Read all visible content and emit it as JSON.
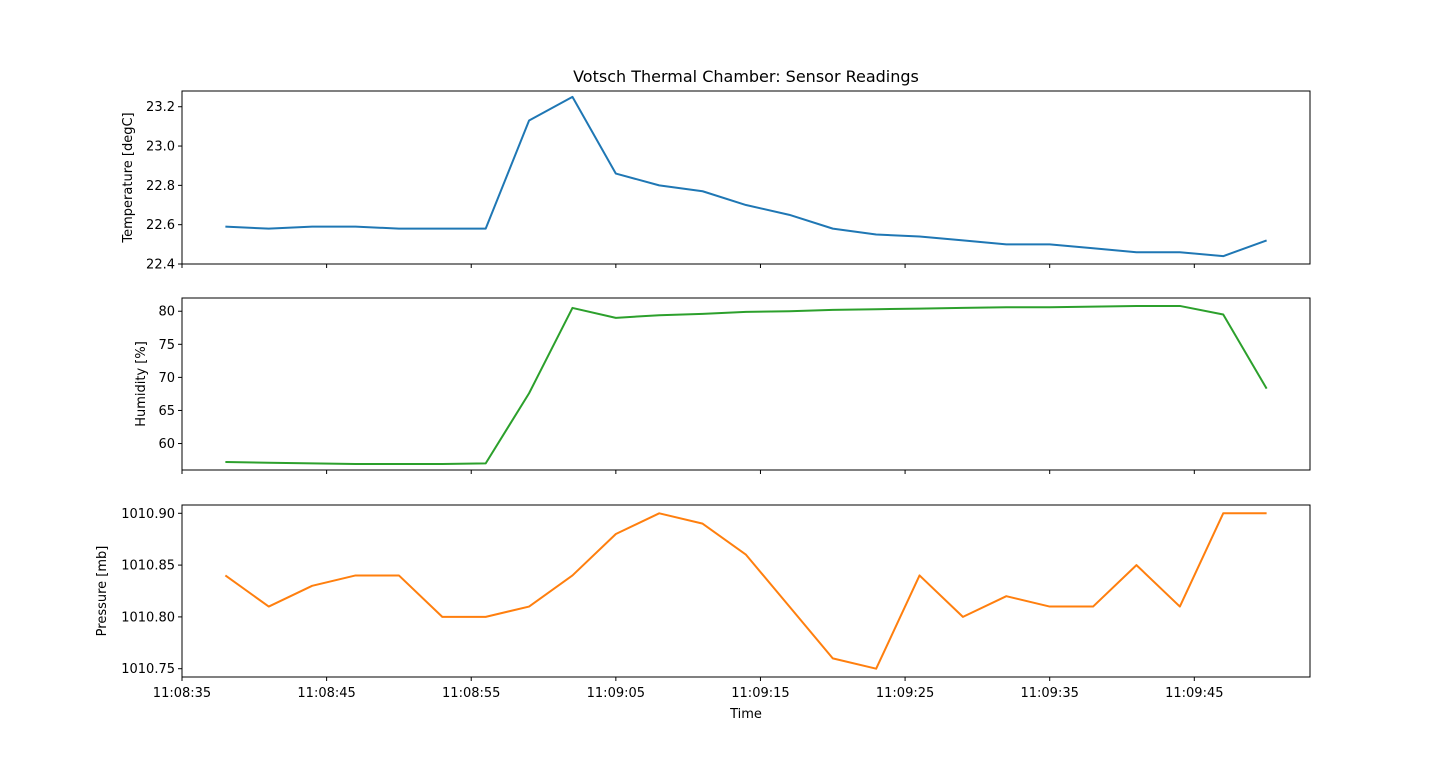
{
  "chart_data": {
    "type": "line",
    "title": "Votsch Thermal Chamber: Sensor Readings",
    "xlabel": "Time",
    "x_tick_labels": [
      "11:08:35",
      "11:08:45",
      "11:08:55",
      "11:09:05",
      "11:09:15",
      "11:09:25",
      "11:09:35",
      "11:09:45"
    ],
    "x": [
      "11:08:38",
      "11:08:41",
      "11:08:44",
      "11:08:47",
      "11:08:50",
      "11:08:53",
      "11:08:56",
      "11:08:59",
      "11:09:02",
      "11:09:05",
      "11:09:08",
      "11:09:11",
      "11:09:14",
      "11:09:17",
      "11:09:20",
      "11:09:23",
      "11:09:26",
      "11:09:29",
      "11:09:32",
      "11:09:35",
      "11:09:38",
      "11:09:41",
      "11:09:44",
      "11:09:47",
      "11:09:50"
    ],
    "xlim": [
      "11:08:35",
      "11:09:53"
    ],
    "grid": false,
    "panels": [
      {
        "ylabel": "Temperature [degC]",
        "ylim": [
          22.4,
          23.28
        ],
        "yticks": [
          22.4,
          22.6,
          22.8,
          23.0,
          23.2
        ],
        "tick_decimals": 1,
        "color": "#1f77b4",
        "values": [
          22.59,
          22.58,
          22.59,
          22.59,
          22.58,
          22.58,
          22.58,
          23.13,
          23.25,
          22.86,
          22.8,
          22.77,
          22.7,
          22.65,
          22.58,
          22.55,
          22.54,
          22.52,
          22.5,
          22.5,
          22.48,
          22.46,
          22.46,
          22.44,
          22.52
        ]
      },
      {
        "ylabel": "Humidity [%]",
        "ylim": [
          56.0,
          82.0
        ],
        "yticks": [
          60,
          65,
          70,
          75,
          80
        ],
        "tick_decimals": 0,
        "color": "#2ca02c",
        "values": [
          57.2,
          57.1,
          57.0,
          56.9,
          56.9,
          56.9,
          57.0,
          67.6,
          80.5,
          79.0,
          79.4,
          79.6,
          79.9,
          80.0,
          80.2,
          80.3,
          80.4,
          80.5,
          80.6,
          80.6,
          80.7,
          80.8,
          80.8,
          79.5,
          68.3
        ]
      },
      {
        "ylabel": "Pressure [mb]",
        "ylim": [
          1010.742,
          1010.908
        ],
        "yticks": [
          1010.75,
          1010.8,
          1010.85,
          1010.9
        ],
        "tick_decimals": 2,
        "color": "#ff7f0e",
        "values": [
          1010.84,
          1010.81,
          1010.83,
          1010.84,
          1010.84,
          1010.8,
          1010.8,
          1010.81,
          1010.84,
          1010.88,
          1010.9,
          1010.89,
          1010.86,
          1010.81,
          1010.76,
          1010.75,
          1010.84,
          1010.8,
          1010.82,
          1010.81,
          1010.81,
          1010.85,
          1010.81,
          1010.9,
          1010.9
        ]
      }
    ]
  }
}
